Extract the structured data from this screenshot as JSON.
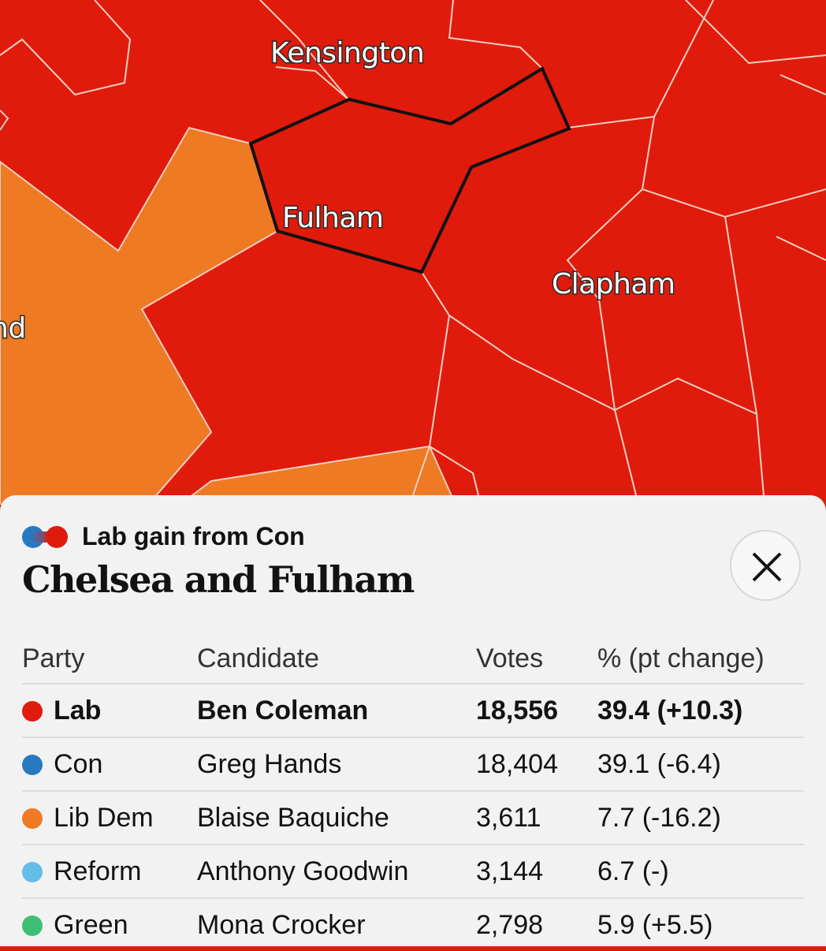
{
  "map": {
    "labels": {
      "kensington": "Kensington",
      "fulham": "Fulham",
      "clapham": "Clapham",
      "partial_left": "nd"
    },
    "colors": {
      "lab": "#e01b0c",
      "lib_dem": "#ee7a24",
      "selected_outline": "#111111",
      "border": "#f4cfc0"
    }
  },
  "panel": {
    "result_text": "Lab gain from Con",
    "swing_colors": {
      "from": "#2979c0",
      "to": "#e01b0c"
    },
    "seat_name": "Chelsea and Fulham",
    "close_icon": "close-icon",
    "table": {
      "headers": {
        "party": "Party",
        "candidate": "Candidate",
        "votes": "Votes",
        "pct": "% (pt change)"
      },
      "rows": [
        {
          "party": "Lab",
          "candidate": "Ben Coleman",
          "votes": "18,556",
          "pct": "39.4 (+10.3)",
          "color": "#e01b0c",
          "winner": true
        },
        {
          "party": "Con",
          "candidate": "Greg Hands",
          "votes": "18,404",
          "pct": "39.1 (-6.4)",
          "color": "#2979c0",
          "winner": false
        },
        {
          "party": "Lib Dem",
          "candidate": "Blaise Baquiche",
          "votes": "3,611",
          "pct": "7.7 (-16.2)",
          "color": "#ee7a24",
          "winner": false
        },
        {
          "party": "Reform",
          "candidate": "Anthony Goodwin",
          "votes": "3,144",
          "pct": "6.7 (-)",
          "color": "#66bde8",
          "winner": false
        },
        {
          "party": "Green",
          "candidate": "Mona Crocker",
          "votes": "2,798",
          "pct": "5.9 (+5.5)",
          "color": "#3fbf73",
          "winner": false
        }
      ]
    }
  }
}
